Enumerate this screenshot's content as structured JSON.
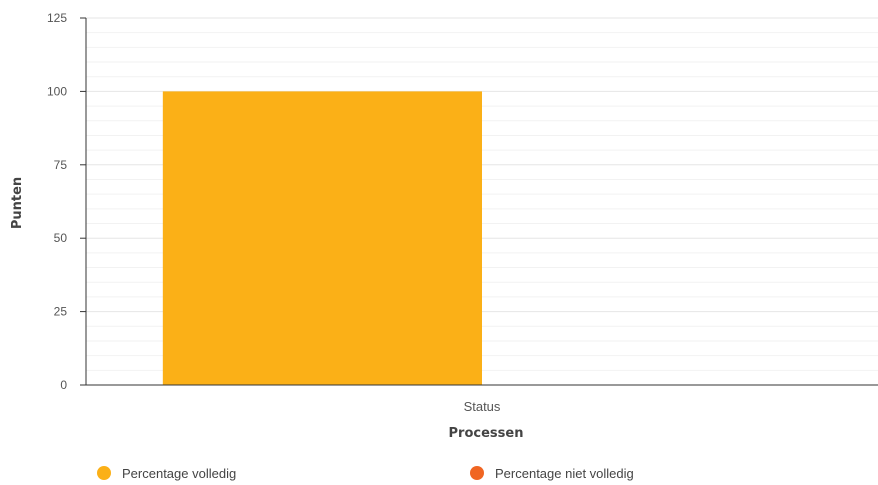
{
  "chart_data": {
    "type": "bar",
    "categories": [
      "Status"
    ],
    "series": [
      {
        "name": "Percentage volledig",
        "values": [
          100
        ],
        "color": "#fbb017"
      },
      {
        "name": "Percentage niet volledig",
        "values": [
          0
        ],
        "color": "#f06522"
      }
    ],
    "xlabel": "Processen",
    "ylabel": "Punten",
    "ylim": [
      0,
      125
    ],
    "yticks": [
      0,
      25,
      50,
      75,
      100,
      125
    ],
    "grid": true,
    "legend_position": "bottom"
  }
}
